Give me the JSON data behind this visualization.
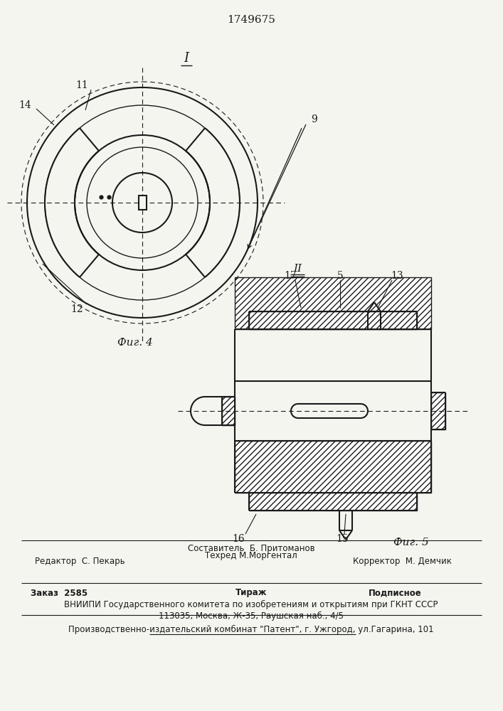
{
  "title": "1749675",
  "bg_color": "#f5f5f0",
  "line_color": "#1a1a1a",
  "fig4_label": "Фиг. 4",
  "fig5_label": "Фиг. 5",
  "footer_line1_center": "Составитель  Б. Притоманов",
  "footer_line2_left": "Редактор  С. Пекарь",
  "footer_line2_center": "Техред М.Моргентал",
  "footer_line2_right": "Корректор  М. Демчик",
  "footer_line3_left": "Заказ  2585",
  "footer_line3_center": "Тираж",
  "footer_line3_right": "Подписное",
  "footer_line4": "ВНИИПИ Государственного комитета по изобретениям и открытиям при ГКНТ СССР",
  "footer_line5": "113035, Москва, Ж-35, Раушская наб., 4/5",
  "footer_line6": "Производственно-издательский комбинат \"Патент\", г. Ужгород, ул.Гагарина, 101"
}
